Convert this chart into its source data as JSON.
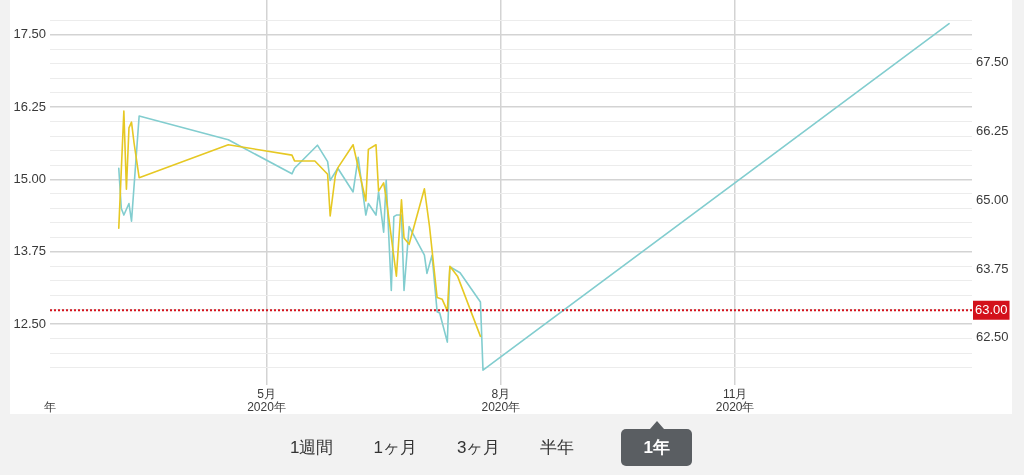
{
  "chart_data": {
    "type": "line",
    "xlim": [
      "2020-02-06",
      "2021-02-02"
    ],
    "xticks": [
      {
        "value": "2020-02-06",
        "label": "年"
      },
      {
        "value": "2020-05-01",
        "label": "5月\n2020年"
      },
      {
        "value": "2020-08-01",
        "label": "8月\n2020年"
      },
      {
        "value": "2020-11-01",
        "label": "11月\n2020年"
      }
    ],
    "ylim": [
      11.45,
      18.1
    ],
    "yticks": [
      {
        "value": 11.75,
        "label": null
      },
      {
        "value": 12,
        "label": null
      },
      {
        "value": 12.25,
        "label": null
      },
      {
        "value": 12.5,
        "label": "12.50"
      },
      {
        "value": 12.75,
        "label": null
      },
      {
        "value": 13,
        "label": null
      },
      {
        "value": 13.25,
        "label": null
      },
      {
        "value": 13.5,
        "label": null
      },
      {
        "value": 13.75,
        "label": "13.75"
      },
      {
        "value": 14,
        "label": null
      },
      {
        "value": 14.25,
        "label": null
      },
      {
        "value": 14.5,
        "label": null
      },
      {
        "value": 14.75,
        "label": null
      },
      {
        "value": 15,
        "label": "15.00"
      },
      {
        "value": 15.25,
        "label": null
      },
      {
        "value": 15.5,
        "label": null
      },
      {
        "value": 15.75,
        "label": null
      },
      {
        "value": 16,
        "label": null
      },
      {
        "value": 16.25,
        "label": "16.25"
      },
      {
        "value": 16.5,
        "label": null
      },
      {
        "value": 16.75,
        "label": null
      },
      {
        "value": 17,
        "label": null
      },
      {
        "value": 17.25,
        "label": null
      },
      {
        "value": 17.5,
        "label": "17.50"
      },
      {
        "value": 17.75,
        "label": null
      }
    ],
    "y2lim": [
      61.64,
      68.64
    ],
    "y2ticks": [
      {
        "value": 62.5,
        "label": "62.50"
      },
      {
        "value": 63.75,
        "label": "63.75"
      },
      {
        "value": 65,
        "label": "65.00"
      },
      {
        "value": 66.25,
        "label": "66.25"
      },
      {
        "value": 67.5,
        "label": "67.50"
      }
    ],
    "grid": true,
    "series": [
      {
        "color": "#e6c823",
        "x": [
          "2020-03-04",
          "2020-03-06",
          "2020-03-07",
          "2020-03-08",
          "2020-03-09",
          "2020-03-10",
          "2020-03-12",
          "2020-04-16",
          "2020-05-11",
          "2020-05-12",
          "2020-05-20",
          "2020-05-25",
          "2020-05-26",
          "2020-05-28",
          "2020-05-29",
          "2020-06-04",
          "2020-06-09",
          "2020-06-10",
          "2020-06-13",
          "2020-06-14",
          "2020-06-16",
          "2020-06-17",
          "2020-06-21",
          "2020-06-23",
          "2020-06-24",
          "2020-06-26",
          "2020-07-02",
          "2020-07-04",
          "2020-07-07",
          "2020-07-09",
          "2020-07-11",
          "2020-07-12",
          "2020-07-15",
          "2020-07-24"
        ],
        "values": [
          14.16,
          16.18,
          14.83,
          15.89,
          15.99,
          15.63,
          15.03,
          15.6,
          15.42,
          15.32,
          15.32,
          15.09,
          14.37,
          15.06,
          15.2,
          15.6,
          14.63,
          15.52,
          15.6,
          14.8,
          14.94,
          14.68,
          13.33,
          14.65,
          13.99,
          13.88,
          14.84,
          14.19,
          12.96,
          12.93,
          12.73,
          13.5,
          13.33,
          12.29
        ]
      },
      {
        "color": "#82cdcf",
        "axis": "y2",
        "x": [
          "2020-03-04",
          "2020-03-05",
          "2020-03-06",
          "2020-03-08",
          "2020-03-09",
          "2020-03-12",
          "2020-04-16",
          "2020-05-11",
          "2020-05-12",
          "2020-05-21",
          "2020-05-25",
          "2020-05-26",
          "2020-05-29",
          "2020-06-04",
          "2020-06-06",
          "2020-06-09",
          "2020-06-10",
          "2020-06-13",
          "2020-06-14",
          "2020-06-16",
          "2020-06-17",
          "2020-06-19",
          "2020-06-20",
          "2020-06-21",
          "2020-06-23",
          "2020-06-24",
          "2020-06-26",
          "2020-07-02",
          "2020-07-03",
          "2020-07-05",
          "2020-07-07",
          "2020-07-08",
          "2020-07-11",
          "2020-07-12",
          "2020-07-16",
          "2020-07-24",
          "2020-07-25",
          "2021-01-24"
        ],
        "values": [
          65.58,
          64.85,
          64.73,
          64.94,
          64.62,
          66.53,
          66.1,
          65.48,
          65.58,
          66.0,
          65.7,
          65.36,
          65.58,
          65.15,
          65.78,
          64.73,
          64.94,
          64.73,
          65.15,
          64.42,
          65.36,
          63.36,
          64.7,
          64.73,
          64.73,
          63.36,
          64.52,
          64.0,
          63.67,
          64.0,
          62.97,
          62.95,
          62.42,
          63.79,
          63.68,
          63.15,
          61.91,
          68.21
        ]
      }
    ],
    "ref_lines": [
      {
        "axis": "y2",
        "value": 63,
        "label": "63.00",
        "color": "#d3111b",
        "line_style": "dotted"
      }
    ],
    "annotations": [
      "1週間",
      "1ヶ月",
      "3ヶ月",
      "半年",
      "1年"
    ]
  }
}
